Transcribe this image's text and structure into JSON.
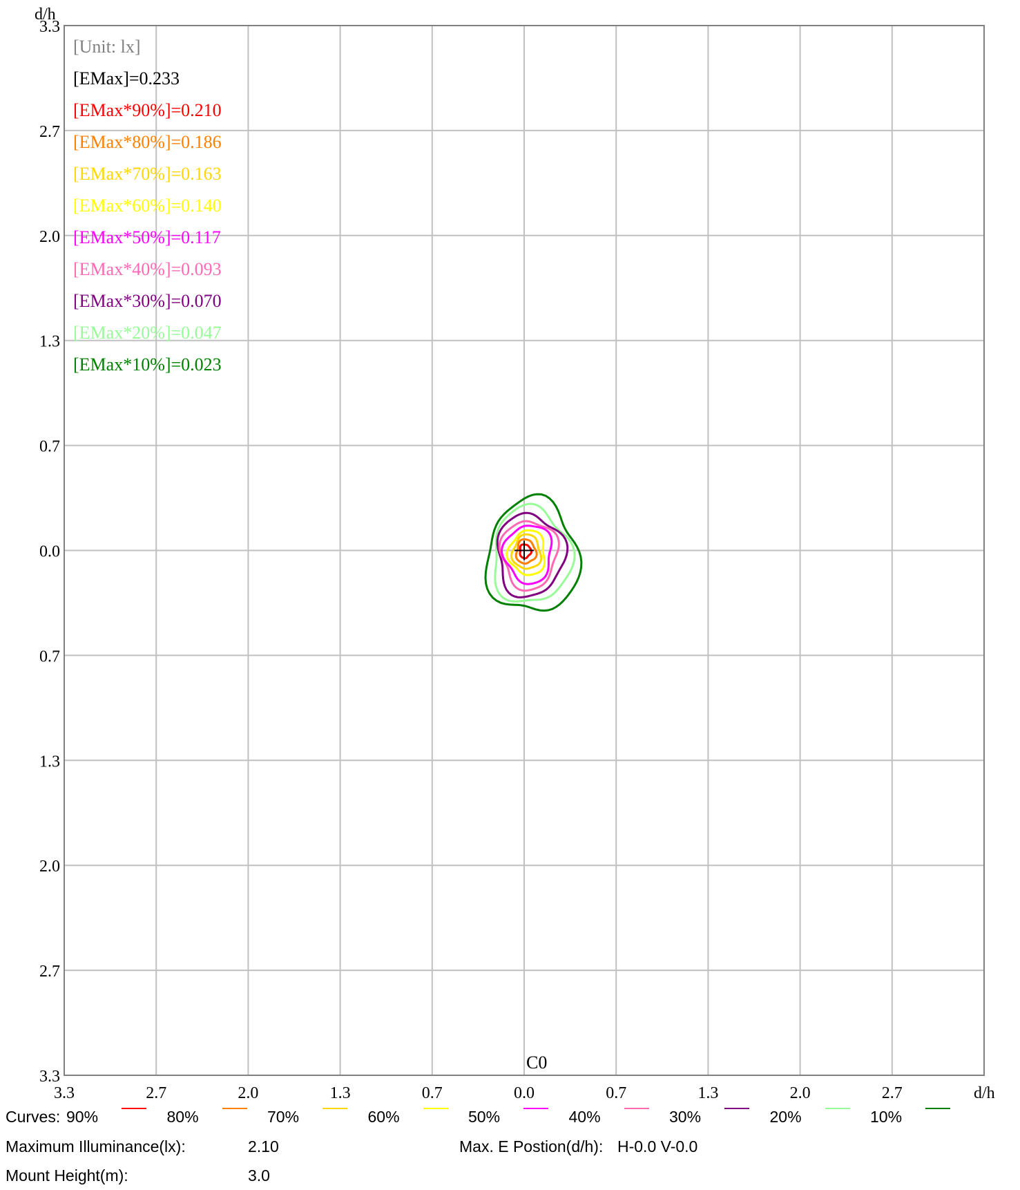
{
  "chart_data": {
    "type": "contour",
    "axis_unit_label_y": "d/h",
    "axis_unit_label_x": "d/h",
    "x_ticks": [
      "3.3",
      "2.7",
      "2.0",
      "1.3",
      "0.7",
      "0.0",
      "0.7",
      "1.3",
      "2.0",
      "2.7"
    ],
    "y_ticks": [
      "3.3",
      "2.7",
      "2.0",
      "1.3",
      "0.7",
      "0.0",
      "0.7",
      "1.3",
      "2.0",
      "2.7",
      "3.3"
    ],
    "xlim": [
      -3.3,
      3.3
    ],
    "ylim": [
      -3.3,
      3.3
    ],
    "grid": true,
    "plane_label": "C0",
    "unit_label": "[Unit: lx]",
    "emax_label": "[EMax]=0.233",
    "max_position": [
      0.0,
      0.0
    ],
    "levels": [
      {
        "label": "[EMax*90%]=0.210",
        "percent": 90,
        "value": 0.21,
        "color": "#ff0000",
        "radius": 0.04
      },
      {
        "label": "[EMax*80%]=0.186",
        "percent": 80,
        "value": 0.186,
        "color": "#ff8000",
        "radius": 0.07
      },
      {
        "label": "[EMax*70%]=0.163",
        "percent": 70,
        "value": 0.163,
        "color": "#ffd700",
        "radius": 0.1
      },
      {
        "label": "[EMax*60%]=0.140",
        "percent": 60,
        "value": 0.14,
        "color": "#ffff00",
        "radius": 0.13
      },
      {
        "label": "[EMax*50%]=0.117",
        "percent": 50,
        "value": 0.117,
        "color": "#ff00ff",
        "radius": 0.17
      },
      {
        "label": "[EMax*40%]=0.093",
        "percent": 40,
        "value": 0.093,
        "color": "#ff69b4",
        "radius": 0.2
      },
      {
        "label": "[EMax*30%]=0.070",
        "percent": 30,
        "value": 0.07,
        "color": "#800080",
        "radius": 0.24
      },
      {
        "label": "[EMax*20%]=0.047",
        "percent": 20,
        "value": 0.047,
        "color": "#98fb98",
        "radius": 0.28
      },
      {
        "label": "[EMax*10%]=0.023",
        "percent": 10,
        "value": 0.023,
        "color": "#008000",
        "radius": 0.33
      }
    ]
  },
  "footer": {
    "curves_label": "Curves:",
    "curves": [
      {
        "label": "90%",
        "color": "#ff0000"
      },
      {
        "label": "80%",
        "color": "#ff8000"
      },
      {
        "label": "70%",
        "color": "#ffd700"
      },
      {
        "label": "60%",
        "color": "#ffff00"
      },
      {
        "label": "50%",
        "color": "#ff00ff"
      },
      {
        "label": "40%",
        "color": "#ff69b4"
      },
      {
        "label": "30%",
        "color": "#800080"
      },
      {
        "label": "20%",
        "color": "#98fb98"
      },
      {
        "label": "10%",
        "color": "#008000"
      }
    ],
    "max_illuminance_label": "Maximum Illuminance(lx):",
    "max_illuminance_value": "2.10",
    "max_position_label": "Max. E Postion(d/h):",
    "max_position_value": "H-0.0 V-0.0",
    "mount_height_label": "Mount Height(m):",
    "mount_height_value": "3.0"
  }
}
